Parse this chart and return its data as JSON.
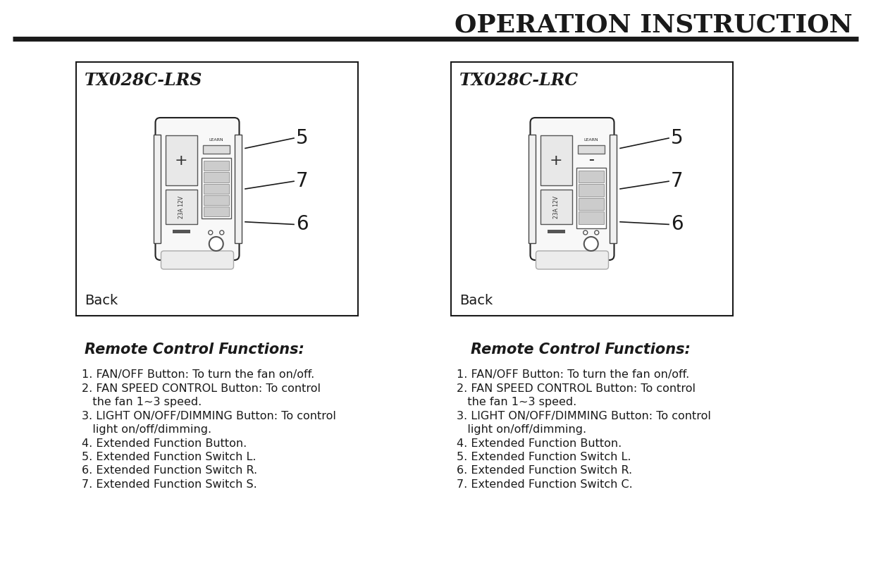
{
  "title": "OPERATION INSTRUCTION",
  "bg_color": "#ffffff",
  "text_color": "#1a1a1a",
  "line_color": "#1a1a1a",
  "left_label": "TX028C-LRS",
  "right_label": "TX028C-LRC",
  "back_text": "Back",
  "left_title": "Remote Control Functions:",
  "right_title": "Remote Control Functions:",
  "left_items": [
    "1. FAN/OFF Button: To turn the fan on/off.",
    "2. FAN SPEED CONTROL Button: To control",
    "   the fan 1~3 speed.",
    "3. LIGHT ON/OFF/DIMMING Button: To control",
    "   light on/off/dimming.",
    "4. Extended Function Button.",
    "5. Extended Function Switch L.",
    "6. Extended Function Switch R.",
    "7. Extended Function Switch S."
  ],
  "right_items": [
    "1. FAN/OFF Button: To turn the fan on/off.",
    "2. FAN SPEED CONTROL Button: To control",
    "   the fan 1~3 speed.",
    "3. LIGHT ON/OFF/DIMMING Button: To control",
    "   light on/off/dimming.",
    "4. Extended Function Button.",
    "5. Extended Function Switch L.",
    "6. Extended Function Switch R.",
    "7. Extended Function Switch C."
  ]
}
